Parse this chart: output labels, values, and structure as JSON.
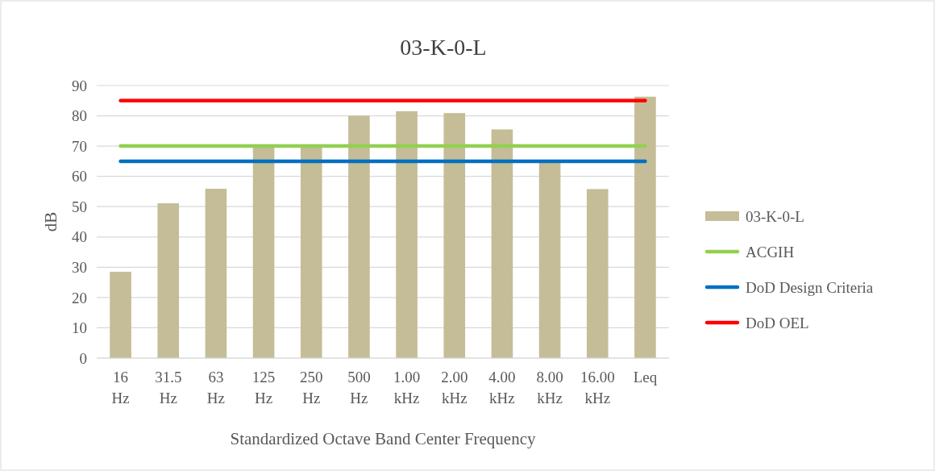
{
  "chart_data": {
    "type": "bar",
    "title": "03-K-0-L",
    "xlabel": "Standardized Octave Band Center Frequency",
    "ylabel": "dB",
    "categories": [
      "16 Hz",
      "31.5 Hz",
      "63 Hz",
      "125 Hz",
      "250 Hz",
      "500 Hz",
      "1.00 kHz",
      "2.00 kHz",
      "4.00 kHz",
      "8.00 kHz",
      "16.00 kHz",
      "Leq"
    ],
    "series": [
      {
        "name": "03-K-0-L",
        "color": "#c4bd97",
        "values": [
          28.5,
          51.1,
          55.9,
          69.5,
          69.5,
          80.0,
          81.5,
          80.9,
          75.5,
          64.5,
          55.8,
          86.3
        ]
      },
      {
        "name": "ACGIH",
        "type": "line",
        "color": "#92d050",
        "values": [
          70,
          70,
          70,
          70,
          70,
          70,
          70,
          70,
          70,
          70,
          70,
          70
        ]
      },
      {
        "name": "DoD Design Criteria",
        "type": "line",
        "color": "#0070c0",
        "values": [
          65,
          65,
          65,
          65,
          65,
          65,
          65,
          65,
          65,
          65,
          65,
          65
        ]
      },
      {
        "name": "DoD OEL",
        "type": "line",
        "color": "#ff0000",
        "values": [
          85,
          85,
          85,
          85,
          85,
          85,
          85,
          85,
          85,
          85,
          85,
          85
        ]
      }
    ],
    "ylim": [
      0,
      90
    ],
    "yticks": [
      0,
      10,
      20,
      30,
      40,
      50,
      60,
      70,
      80,
      90
    ],
    "grid": "y",
    "legend": "right",
    "marker": "none",
    "line_style": "solid"
  }
}
